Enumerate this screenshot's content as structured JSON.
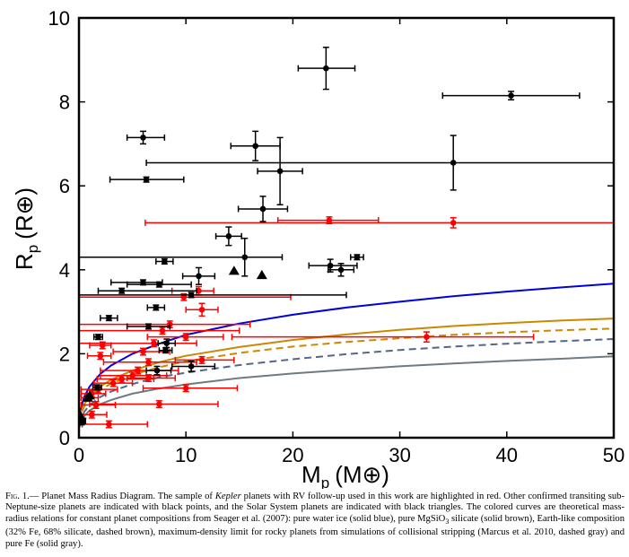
{
  "chart_data": {
    "type": "scatter",
    "xlim": [
      0,
      50
    ],
    "ylim": [
      0,
      10
    ],
    "xticks": [
      0,
      10,
      20,
      30,
      40,
      50
    ],
    "yticks": [
      0,
      2,
      4,
      6,
      8,
      10
    ],
    "xlabel": {
      "main": "M",
      "sub": "p",
      "unit": "(M⊕)"
    },
    "ylabel": {
      "main": "R",
      "sub": "p",
      "unit": "(R⊕)"
    },
    "grid": false,
    "series": [
      {
        "name": "Kepler planets with RV follow-up (this work)",
        "color": "#ff0000",
        "marker": "dot",
        "points": [
          {
            "x": 23.4,
            "y": 5.18,
            "xerr": [
              4.8,
              4.6
            ],
            "yerr": 0.08
          },
          {
            "x": 35.0,
            "y": 5.12,
            "xerr": [
              28.8,
              15
            ],
            "yerr": 0.12
          },
          {
            "x": 32.5,
            "y": 2.4,
            "xerr": [
              18.2,
              10
            ],
            "yerr": 0.12
          },
          {
            "x": 11.2,
            "y": 3.5,
            "xerr": [
              2.5,
              1.4
            ],
            "yerr": 0.1
          },
          {
            "x": 9.8,
            "y": 3.35,
            "xerr": [
              9.8,
              10
            ],
            "yerr": 0.08
          },
          {
            "x": 11.5,
            "y": 3.05,
            "xerr": [
              1.5,
              1.5
            ],
            "yerr": 0.15
          },
          {
            "x": 8.5,
            "y": 2.7,
            "xerr": [
              8.5,
              7.5
            ],
            "yerr": 0.08
          },
          {
            "x": 7.8,
            "y": 2.55,
            "xerr": [
              7.8,
              7.2
            ],
            "yerr": 0.08
          },
          {
            "x": 10.0,
            "y": 2.4,
            "xerr": [
              3.6,
              3.5
            ],
            "yerr": 0.08
          },
          {
            "x": 7.0,
            "y": 2.25,
            "xerr": [
              7.0,
              4
            ],
            "yerr": 0.08
          },
          {
            "x": 2.2,
            "y": 2.2,
            "xerr": [
              1.2,
              0.8
            ],
            "yerr": 0.08
          },
          {
            "x": 6.0,
            "y": 2.05,
            "xerr": [
              2.8,
              2.5
            ],
            "yerr": 0.08
          },
          {
            "x": 2.0,
            "y": 1.95,
            "xerr": [
              1.2,
              1.0
            ],
            "yerr": 0.08
          },
          {
            "x": 11.5,
            "y": 1.85,
            "xerr": [
              2.5,
              3.0
            ],
            "yerr": 0.08
          },
          {
            "x": 6.5,
            "y": 1.8,
            "xerr": [
              4.2,
              4.5
            ],
            "yerr": 0.08
          },
          {
            "x": 5.5,
            "y": 1.6,
            "xerr": [
              3.5,
              3.8
            ],
            "yerr": 0.08
          },
          {
            "x": 5.0,
            "y": 1.48,
            "xerr": [
              3.0,
              3.2
            ],
            "yerr": 0.08
          },
          {
            "x": 4.0,
            "y": 1.4,
            "xerr": [
              2.3,
              3.0
            ],
            "yerr": 0.08
          },
          {
            "x": 6.5,
            "y": 1.42,
            "xerr": [
              2.0,
              2.5
            ],
            "yerr": 0.08
          },
          {
            "x": 3.2,
            "y": 1.3,
            "xerr": [
              1.8,
              1.8
            ],
            "yerr": 0.08
          },
          {
            "x": 10.0,
            "y": 1.18,
            "xerr": [
              4.0,
              4.8
            ],
            "yerr": 0.08
          },
          {
            "x": 1.8,
            "y": 1.15,
            "xerr": [
              1.6,
              1.8
            ],
            "yerr": 0.08
          },
          {
            "x": 1.2,
            "y": 1.05,
            "xerr": [
              1.0,
              1.3
            ],
            "yerr": 0.08
          },
          {
            "x": 0.8,
            "y": 0.95,
            "xerr": [
              0.6,
              1.0
            ],
            "yerr": 0.08
          },
          {
            "x": 7.5,
            "y": 0.8,
            "xerr": [
              6.5,
              5.5
            ],
            "yerr": 0.08
          },
          {
            "x": 1.6,
            "y": 0.78,
            "xerr": [
              1.4,
              1.8
            ],
            "yerr": 0.08
          },
          {
            "x": 1.2,
            "y": 0.55,
            "xerr": [
              1.2,
              1.4
            ],
            "yerr": 0.08
          },
          {
            "x": 2.8,
            "y": 0.32,
            "xerr": [
              2.5,
              3.6
            ],
            "yerr": 0.08
          }
        ]
      },
      {
        "name": "Other confirmed transiting sub-Neptune-size planets",
        "color": "#000000",
        "marker": "dot",
        "points": [
          {
            "x": 23.1,
            "y": 8.8,
            "xerr": [
              2.6,
              2.7
            ],
            "yerr": 0.5
          },
          {
            "x": 40.4,
            "y": 8.15,
            "xerr": [
              6.4,
              6.4
            ],
            "yerr": 0.1
          },
          {
            "x": 6.0,
            "y": 7.15,
            "xerr": [
              1.5,
              2.0
            ],
            "yerr": 0.15
          },
          {
            "x": 16.5,
            "y": 6.95,
            "xerr": [
              2.3,
              2.3
            ],
            "yerr": 0.35
          },
          {
            "x": 18.8,
            "y": 6.35,
            "xerr": [
              2.1,
              2.1
            ],
            "yerr": 0.8
          },
          {
            "x": 35.0,
            "y": 6.55,
            "xerr": [
              28.7,
              15
            ],
            "yerr": 0.65
          },
          {
            "x": 6.3,
            "y": 6.15,
            "xerr": [
              3.4,
              3.5
            ],
            "yerr": 0.06
          },
          {
            "x": 17.2,
            "y": 5.45,
            "xerr": [
              2.3,
              2.3
            ],
            "yerr": 0.3
          },
          {
            "x": 14.0,
            "y": 4.8,
            "xerr": [
              1.2,
              1.2
            ],
            "yerr": 0.22
          },
          {
            "x": 15.5,
            "y": 4.3,
            "xerr": [
              15.5,
              3.5
            ],
            "yerr": 0.45
          },
          {
            "x": 8.0,
            "y": 4.2,
            "xerr": [
              0.8,
              0.8
            ],
            "yerr": 0.06
          },
          {
            "x": 26.0,
            "y": 4.3,
            "xerr": [
              0.6,
              0.6
            ],
            "yerr": 0.06
          },
          {
            "x": 23.5,
            "y": 4.1,
            "xerr": [
              2.0,
              2.5
            ],
            "yerr": 0.15
          },
          {
            "x": 24.5,
            "y": 4.0,
            "xerr": [
              1.2,
              1.2
            ],
            "yerr": 0.15
          },
          {
            "x": 11.2,
            "y": 3.85,
            "xerr": [
              1.5,
              1.5
            ],
            "yerr": 0.2
          },
          {
            "x": 6.0,
            "y": 3.7,
            "xerr": [
              3.0,
              1.8
            ],
            "yerr": 0.06
          },
          {
            "x": 7.5,
            "y": 3.65,
            "xerr": [
              3.0,
              3.0
            ],
            "yerr": 0.06
          },
          {
            "x": 4.0,
            "y": 3.5,
            "xerr": [
              2.2,
              7.0
            ],
            "yerr": 0.06
          },
          {
            "x": 10.5,
            "y": 3.4,
            "xerr": [
              10.5,
              14.5
            ],
            "yerr": 0.06
          },
          {
            "x": 7.2,
            "y": 3.1,
            "xerr": [
              0.8,
              0.8
            ],
            "yerr": 0.06
          },
          {
            "x": 2.8,
            "y": 2.85,
            "xerr": [
              0.8,
              0.8
            ],
            "yerr": 0.06
          },
          {
            "x": 6.5,
            "y": 2.65,
            "xerr": [
              2.0,
              2.0
            ],
            "yerr": 0.06
          },
          {
            "x": 1.8,
            "y": 2.4,
            "xerr": [
              0.4,
              0.4
            ],
            "yerr": 0.06
          },
          {
            "x": 8.2,
            "y": 2.25,
            "xerr": [
              0.8,
              0.8
            ],
            "yerr": 0.1
          },
          {
            "x": 8.1,
            "y": 2.08,
            "xerr": [
              0.6,
              0.6
            ],
            "yerr": 0.06
          },
          {
            "x": 10.5,
            "y": 1.7,
            "xerr": [
              1.8,
              2.2
            ],
            "yerr": 0.12
          },
          {
            "x": 7.3,
            "y": 1.6,
            "xerr": [
              1.0,
              1.3
            ],
            "yerr": 0.1
          },
          {
            "x": 1.7,
            "y": 1.2,
            "xerr": [
              0.4,
              0.4
            ],
            "yerr": 0.06
          },
          {
            "x": 0.4,
            "y": 0.4,
            "xerr": [
              0.2,
              0.2
            ],
            "yerr": 0.06
          }
        ]
      },
      {
        "name": "Solar System planets",
        "color": "#000000",
        "marker": "triangle",
        "points": [
          {
            "x": 14.5,
            "y": 3.97
          },
          {
            "x": 17.1,
            "y": 3.87
          },
          {
            "x": 1.0,
            "y": 1.0
          },
          {
            "x": 0.82,
            "y": 0.95
          },
          {
            "x": 0.11,
            "y": 0.53
          },
          {
            "x": 0.06,
            "y": 0.38
          }
        ]
      }
    ],
    "curves": [
      {
        "name": "pure water ice",
        "color": "#0000dd",
        "style": "solid",
        "points": [
          [
            0.05,
            0.45
          ],
          [
            0.2,
            0.72
          ],
          [
            0.5,
            0.98
          ],
          [
            1,
            1.22
          ],
          [
            2,
            1.52
          ],
          [
            3,
            1.72
          ],
          [
            5,
            2.0
          ],
          [
            7.5,
            2.24
          ],
          [
            10,
            2.45
          ],
          [
            15,
            2.72
          ],
          [
            20,
            2.93
          ],
          [
            25,
            3.1
          ],
          [
            30,
            3.24
          ],
          [
            35,
            3.37
          ],
          [
            40,
            3.48
          ],
          [
            45,
            3.58
          ],
          [
            50,
            3.67
          ]
        ]
      },
      {
        "name": "pure MgSiO3 silicate",
        "color": "#cc8800",
        "style": "solid",
        "points": [
          [
            0.05,
            0.4
          ],
          [
            0.2,
            0.6
          ],
          [
            0.5,
            0.8
          ],
          [
            1,
            0.98
          ],
          [
            2,
            1.22
          ],
          [
            3,
            1.38
          ],
          [
            5,
            1.6
          ],
          [
            7.5,
            1.8
          ],
          [
            10,
            1.95
          ],
          [
            15,
            2.16
          ],
          [
            20,
            2.33
          ],
          [
            25,
            2.46
          ],
          [
            30,
            2.57
          ],
          [
            35,
            2.66
          ],
          [
            40,
            2.73
          ],
          [
            45,
            2.79
          ],
          [
            50,
            2.84
          ]
        ]
      },
      {
        "name": "Earth-like composition (32% Fe, 68% silicate)",
        "color": "#cc8800",
        "style": "dashed",
        "points": [
          [
            0.05,
            0.37
          ],
          [
            0.2,
            0.56
          ],
          [
            0.5,
            0.75
          ],
          [
            1,
            0.93
          ],
          [
            2,
            1.14
          ],
          [
            3,
            1.29
          ],
          [
            5,
            1.5
          ],
          [
            7.5,
            1.68
          ],
          [
            10,
            1.82
          ],
          [
            15,
            2.02
          ],
          [
            20,
            2.17
          ],
          [
            25,
            2.28
          ],
          [
            30,
            2.37
          ],
          [
            35,
            2.45
          ],
          [
            40,
            2.51
          ],
          [
            45,
            2.56
          ],
          [
            50,
            2.6
          ]
        ]
      },
      {
        "name": "maximum-density limit for rocky planets",
        "color": "#556688",
        "style": "dashed",
        "points": [
          [
            0.05,
            0.3
          ],
          [
            0.2,
            0.46
          ],
          [
            0.5,
            0.62
          ],
          [
            1,
            0.78
          ],
          [
            2,
            0.97
          ],
          [
            3,
            1.1
          ],
          [
            5,
            1.28
          ],
          [
            7.5,
            1.44
          ],
          [
            10,
            1.55
          ],
          [
            15,
            1.73
          ],
          [
            20,
            1.87
          ],
          [
            25,
            1.99
          ],
          [
            30,
            2.09
          ],
          [
            35,
            2.17
          ],
          [
            40,
            2.24
          ],
          [
            45,
            2.3
          ],
          [
            50,
            2.35
          ]
        ]
      },
      {
        "name": "pure Fe",
        "color": "#707a80",
        "style": "solid",
        "points": [
          [
            0.05,
            0.25
          ],
          [
            0.2,
            0.39
          ],
          [
            0.5,
            0.52
          ],
          [
            1,
            0.65
          ],
          [
            2,
            0.8
          ],
          [
            3,
            0.9
          ],
          [
            5,
            1.05
          ],
          [
            7.5,
            1.17
          ],
          [
            10,
            1.27
          ],
          [
            15,
            1.42
          ],
          [
            20,
            1.53
          ],
          [
            25,
            1.62
          ],
          [
            30,
            1.7
          ],
          [
            35,
            1.77
          ],
          [
            40,
            1.83
          ],
          [
            45,
            1.88
          ],
          [
            50,
            1.94
          ]
        ]
      }
    ]
  },
  "caption": {
    "fig_label": "Fig. 1.",
    "parts": [
      "— Planet Mass Radius Diagram.  The sample of ",
      "Kepler",
      " planets with RV follow-up used in this work are highlighted in red. Other confirmed transiting sub-Neptune-size planets are indicated with black points, and the Solar System planets are indicated with black triangles.  The colored curves are theoretical mass-radius relations for constant planet compositions from Seager et al. (2007): pure water ice (solid blue), pure MgSiO",
      "3",
      " silicate (solid brown), Earth-like composition (32% Fe, 68% silicate, dashed brown), maximum-density limit for rocky planets from simulations of collisional stripping (Marcus et al. 2010, dashed gray) and pure Fe (solid gray)."
    ]
  }
}
